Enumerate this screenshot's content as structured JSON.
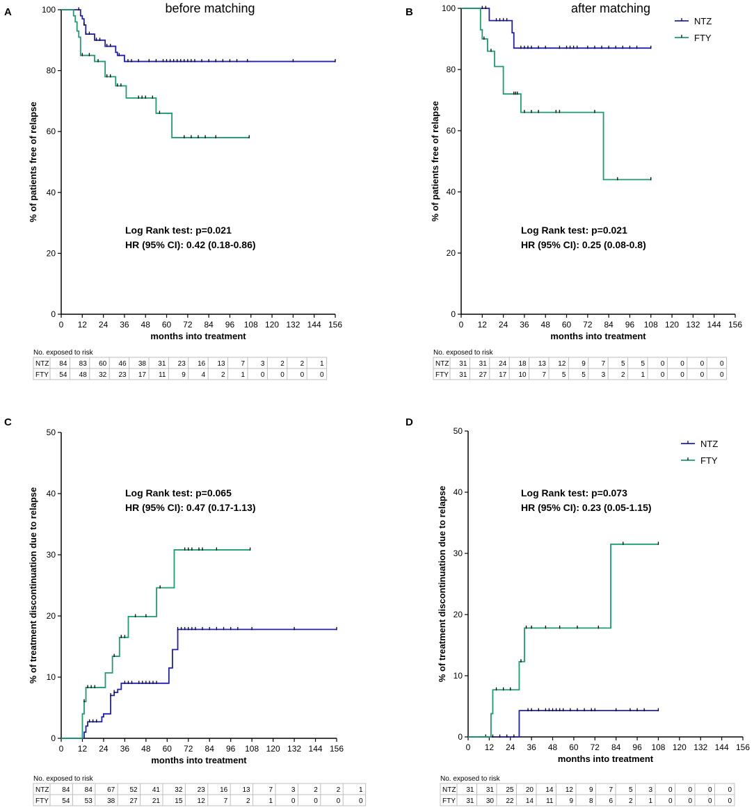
{
  "chart_data": [
    {
      "id": "A",
      "type": "line",
      "step": true,
      "title": "before matching",
      "xlabel": "months into treatment",
      "ylabel": "% of patients free of relapse",
      "xlim": [
        0,
        156
      ],
      "ylim": [
        0,
        100
      ],
      "xticks": [
        0,
        12,
        24,
        36,
        48,
        60,
        72,
        84,
        96,
        108,
        120,
        132,
        144,
        156
      ],
      "yticks": [
        0,
        20,
        40,
        60,
        80,
        100
      ],
      "stats": [
        "Log Rank test: p=0.021",
        "HR (95% CI): 0.42 (0.18-0.86)"
      ],
      "legend": [],
      "series": [
        {
          "name": "NTZ",
          "color": "#1f1fb4",
          "points": [
            [
              0,
              100
            ],
            [
              10,
              100
            ],
            [
              11,
              98
            ],
            [
              12,
              97
            ],
            [
              13,
              95
            ],
            [
              14,
              92
            ],
            [
              18,
              92
            ],
            [
              19,
              90
            ],
            [
              24,
              90
            ],
            [
              25,
              88
            ],
            [
              30,
              88
            ],
            [
              31,
              86
            ],
            [
              32,
              85
            ],
            [
              35,
              85
            ],
            [
              36,
              83
            ],
            [
              156,
              83
            ]
          ],
          "censor": [
            10,
            13,
            14,
            16,
            20,
            22,
            26,
            28,
            33,
            38,
            40,
            44,
            50,
            54,
            58,
            60,
            62,
            64,
            66,
            68,
            70,
            72,
            74,
            76,
            80,
            84,
            88,
            92,
            96,
            100,
            106,
            132,
            156
          ]
        },
        {
          "name": "FTY",
          "color": "#1a9c6e",
          "points": [
            [
              0,
              100
            ],
            [
              6,
              100
            ],
            [
              7,
              98
            ],
            [
              8,
              96
            ],
            [
              9,
              93
            ],
            [
              10,
              91
            ],
            [
              11,
              85
            ],
            [
              18,
              85
            ],
            [
              19,
              83
            ],
            [
              24,
              83
            ],
            [
              25,
              78
            ],
            [
              30,
              78
            ],
            [
              31,
              75
            ],
            [
              36,
              75
            ],
            [
              37,
              71
            ],
            [
              53,
              71
            ],
            [
              54,
              66
            ],
            [
              62,
              66
            ],
            [
              63,
              58
            ],
            [
              107,
              58
            ]
          ],
          "censor": [
            12,
            16,
            21,
            26,
            28,
            32,
            34,
            44,
            46,
            48,
            52,
            56,
            70,
            74,
            78,
            82,
            88,
            107
          ]
        }
      ],
      "risk": {
        "header": "No. exposed to risk",
        "rows": [
          {
            "label": "NTZ",
            "values": [
              84,
              83,
              60,
              46,
              38,
              31,
              23,
              16,
              13,
              7,
              3,
              2,
              2,
              1
            ]
          },
          {
            "label": "FTY",
            "values": [
              54,
              48,
              32,
              23,
              17,
              11,
              9,
              4,
              2,
              1,
              0,
              0,
              0,
              0
            ]
          }
        ]
      }
    },
    {
      "id": "B",
      "type": "line",
      "step": true,
      "title": "after matching",
      "xlabel": "months into treatment",
      "ylabel": "% of patients free of relapse",
      "xlim": [
        0,
        156
      ],
      "ylim": [
        0,
        100
      ],
      "xticks": [
        0,
        12,
        24,
        36,
        48,
        60,
        72,
        84,
        96,
        108,
        120,
        132,
        144,
        156
      ],
      "yticks": [
        0,
        20,
        40,
        60,
        80,
        100
      ],
      "stats": [
        "Log Rank test: p=0.021",
        "HR (95% CI): 0.25 (0.08-0.8)"
      ],
      "legend": [
        "NTZ",
        "FTY"
      ],
      "series": [
        {
          "name": "NTZ",
          "color": "#1f1fb4",
          "points": [
            [
              0,
              100
            ],
            [
              15,
              100
            ],
            [
              16,
              96
            ],
            [
              28,
              96
            ],
            [
              29,
              92
            ],
            [
              30,
              87
            ],
            [
              108,
              87
            ]
          ],
          "censor": [
            12,
            14,
            20,
            22,
            24,
            26,
            34,
            36,
            38,
            40,
            44,
            48,
            56,
            60,
            62,
            64,
            66,
            72,
            76,
            80,
            84,
            88,
            92,
            96,
            100,
            108
          ]
        },
        {
          "name": "FTY",
          "color": "#1a9c6e",
          "points": [
            [
              0,
              100
            ],
            [
              10,
              100
            ],
            [
              11,
              93
            ],
            [
              12,
              90
            ],
            [
              14,
              90
            ],
            [
              15,
              86
            ],
            [
              18,
              86
            ],
            [
              19,
              81
            ],
            [
              23,
              81
            ],
            [
              24,
              72
            ],
            [
              33,
              72
            ],
            [
              34,
              66
            ],
            [
              80,
              66
            ],
            [
              81,
              44
            ],
            [
              108,
              44
            ]
          ],
          "censor": [
            13,
            17,
            30,
            31,
            32,
            36,
            40,
            44,
            54,
            56,
            76,
            89,
            108
          ]
        }
      ],
      "risk": {
        "header": "No. exposed to risk",
        "rows": [
          {
            "label": "NTZ",
            "values": [
              31,
              31,
              24,
              18,
              13,
              12,
              9,
              7,
              5,
              5,
              0,
              0,
              0,
              0
            ]
          },
          {
            "label": "FTY",
            "values": [
              31,
              27,
              17,
              10,
              7,
              5,
              5,
              3,
              2,
              1,
              0,
              0,
              0,
              0
            ]
          }
        ]
      }
    },
    {
      "id": "C",
      "type": "line",
      "step": true,
      "title": "",
      "xlabel": "months into treatment",
      "ylabel": "% of treatment discontinuation due to relapse",
      "xlim": [
        0,
        156
      ],
      "ylim": [
        0,
        50
      ],
      "xticks": [
        0,
        12,
        24,
        36,
        48,
        60,
        72,
        84,
        96,
        108,
        120,
        132,
        144,
        156
      ],
      "yticks": [
        0,
        10,
        20,
        30,
        40,
        50
      ],
      "stats": [
        "Log Rank test: p=0.065",
        "HR (95% CI): 0.47 (0.17-1.13)"
      ],
      "legend": [],
      "series": [
        {
          "name": "NTZ",
          "color": "#1f1fb4",
          "points": [
            [
              0,
              0
            ],
            [
              12,
              0
            ],
            [
              13,
              1
            ],
            [
              14,
              2
            ],
            [
              15,
              2.7
            ],
            [
              22,
              2.7
            ],
            [
              23,
              3.5
            ],
            [
              24,
              4
            ],
            [
              27,
              4
            ],
            [
              28,
              7
            ],
            [
              30,
              7.5
            ],
            [
              31,
              7.5
            ],
            [
              32,
              8
            ],
            [
              34,
              9
            ],
            [
              49,
              9
            ],
            [
              50,
              9
            ],
            [
              51,
              9
            ],
            [
              60,
              9
            ],
            [
              61,
              11.5
            ],
            [
              62,
              11.5
            ],
            [
              63,
              14.5
            ],
            [
              65,
              14.5
            ],
            [
              66,
              17.8
            ],
            [
              156,
              17.8
            ]
          ],
          "censor": [
            12,
            16,
            18,
            20,
            28,
            30,
            36,
            38,
            40,
            44,
            46,
            48,
            50,
            52,
            54,
            66,
            68,
            70,
            72,
            74,
            76,
            80,
            84,
            88,
            92,
            96,
            100,
            108,
            132,
            156
          ]
        },
        {
          "name": "FTY",
          "color": "#1a9c6e",
          "points": [
            [
              0,
              0
            ],
            [
              11,
              0
            ],
            [
              12,
              4
            ],
            [
              13,
              6
            ],
            [
              14,
              8.3
            ],
            [
              24,
              8.3
            ],
            [
              25,
              10.7
            ],
            [
              28,
              10.7
            ],
            [
              29,
              13.4
            ],
            [
              32,
              13.4
            ],
            [
              33,
              16.5
            ],
            [
              37,
              16.5
            ],
            [
              38,
              19.9
            ],
            [
              53,
              19.9
            ],
            [
              54,
              24.6
            ],
            [
              63,
              24.6
            ],
            [
              64,
              30.8
            ],
            [
              107,
              30.8
            ]
          ],
          "censor": [
            13,
            15,
            17,
            19,
            30,
            34,
            36,
            42,
            48,
            56,
            70,
            72,
            74,
            78,
            80,
            88,
            107
          ]
        }
      ],
      "risk": {
        "header": "No. exposed to risk",
        "rows": [
          {
            "label": "NTZ",
            "values": [
              84,
              84,
              67,
              52,
              41,
              32,
              23,
              16,
              13,
              7,
              3,
              2,
              2,
              1
            ]
          },
          {
            "label": "FTY",
            "values": [
              54,
              53,
              38,
              27,
              21,
              15,
              12,
              7,
              2,
              1,
              0,
              0,
              0,
              0
            ]
          }
        ]
      }
    },
    {
      "id": "D",
      "type": "line",
      "step": true,
      "title": "",
      "xlabel": "months into treatment",
      "ylabel": "% of treatment discontinuation due to relapse",
      "xlim": [
        0,
        156
      ],
      "ylim": [
        0,
        50
      ],
      "xticks": [
        0,
        12,
        24,
        36,
        48,
        60,
        72,
        84,
        96,
        108,
        120,
        132,
        144,
        156
      ],
      "yticks": [
        0,
        10,
        20,
        30,
        40,
        50
      ],
      "stats": [
        "Log Rank test: p=0.073",
        "HR (95% CI): 0.23 (0.05-1.15)"
      ],
      "legend": [
        "NTZ",
        "FTY"
      ],
      "series": [
        {
          "name": "NTZ",
          "color": "#1f1fb4",
          "points": [
            [
              0,
              0
            ],
            [
              28,
              0
            ],
            [
              29,
              4.3
            ],
            [
              108,
              4.3
            ]
          ],
          "censor": [
            10,
            14,
            18,
            22,
            26,
            34,
            36,
            40,
            44,
            46,
            48,
            50,
            52,
            54,
            58,
            62,
            66,
            70,
            72,
            84,
            92,
            96,
            100,
            108
          ]
        },
        {
          "name": "FTY",
          "color": "#1a9c6e",
          "points": [
            [
              0,
              0
            ],
            [
              12,
              0
            ],
            [
              13,
              3.8
            ],
            [
              14,
              7.7
            ],
            [
              28,
              7.7
            ],
            [
              29,
              12.3
            ],
            [
              31,
              12.3
            ],
            [
              32,
              17.8
            ],
            [
              80,
              17.8
            ],
            [
              81,
              31.5
            ],
            [
              108,
              31.5
            ]
          ],
          "censor": [
            16,
            20,
            24,
            30,
            33,
            36,
            44,
            52,
            62,
            74,
            88,
            108
          ]
        }
      ],
      "risk": {
        "header": "No. exposed to risk",
        "rows": [
          {
            "label": "NTZ",
            "values": [
              31,
              31,
              25,
              20,
              14,
              12,
              9,
              7,
              5,
              3,
              0,
              0,
              0,
              0
            ]
          },
          {
            "label": "FTY",
            "values": [
              31,
              30,
              22,
              14,
              11,
              9,
              8,
              6,
              2,
              1,
              0,
              0,
              0,
              0
            ]
          }
        ]
      }
    }
  ]
}
